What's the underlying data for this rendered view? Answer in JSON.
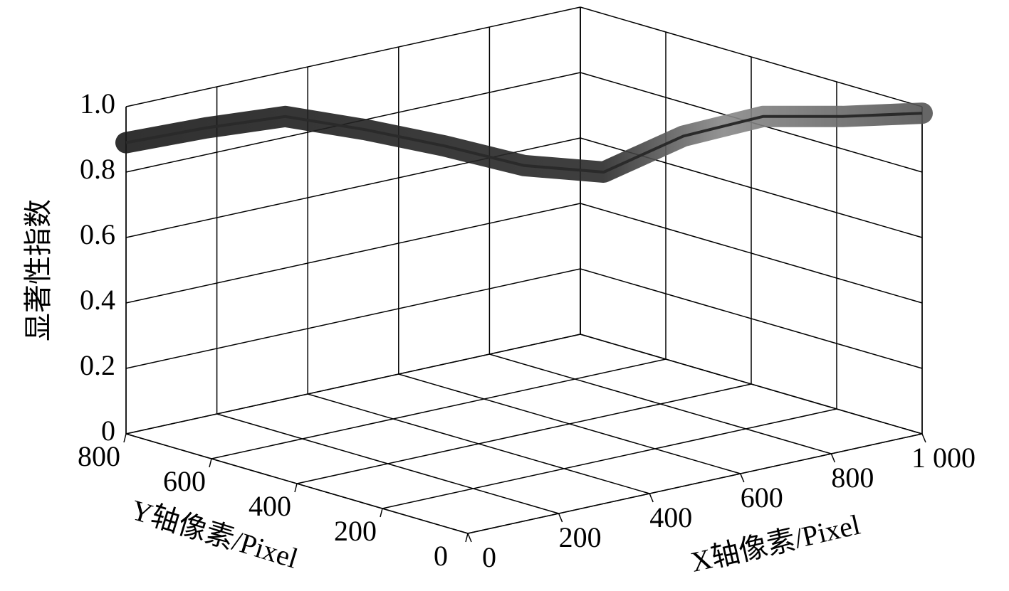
{
  "chart_data": {
    "type": "surface3d",
    "zlabel": "显著性指数",
    "xlabel": "X轴像素/Pixel",
    "ylabel": "Y轴像素/Pixel",
    "x": [
      0,
      100,
      200,
      300,
      400,
      500,
      600,
      700,
      800,
      900,
      1000
    ],
    "y": [
      800,
      720,
      640,
      560,
      480,
      400,
      320,
      240,
      160,
      80,
      0
    ],
    "z": [
      0.89,
      0.935,
      0.97,
      0.93,
      0.88,
      0.82,
      0.8,
      0.91,
      0.97,
      0.97,
      0.98
    ],
    "color": "#2a2a2a",
    "xlim": [
      0,
      1000
    ],
    "ylim": [
      0,
      800
    ],
    "zlim": [
      0,
      1
    ],
    "xticks": [
      0,
      200,
      400,
      600,
      800,
      {
        "value": 1000,
        "label": "1 000"
      }
    ],
    "yticks": [
      0,
      200,
      400,
      600,
      800
    ],
    "zticks": [
      0,
      0.2,
      0.4,
      0.6,
      0.8,
      {
        "value": 1,
        "label": "1.0"
      }
    ],
    "grid": true
  }
}
